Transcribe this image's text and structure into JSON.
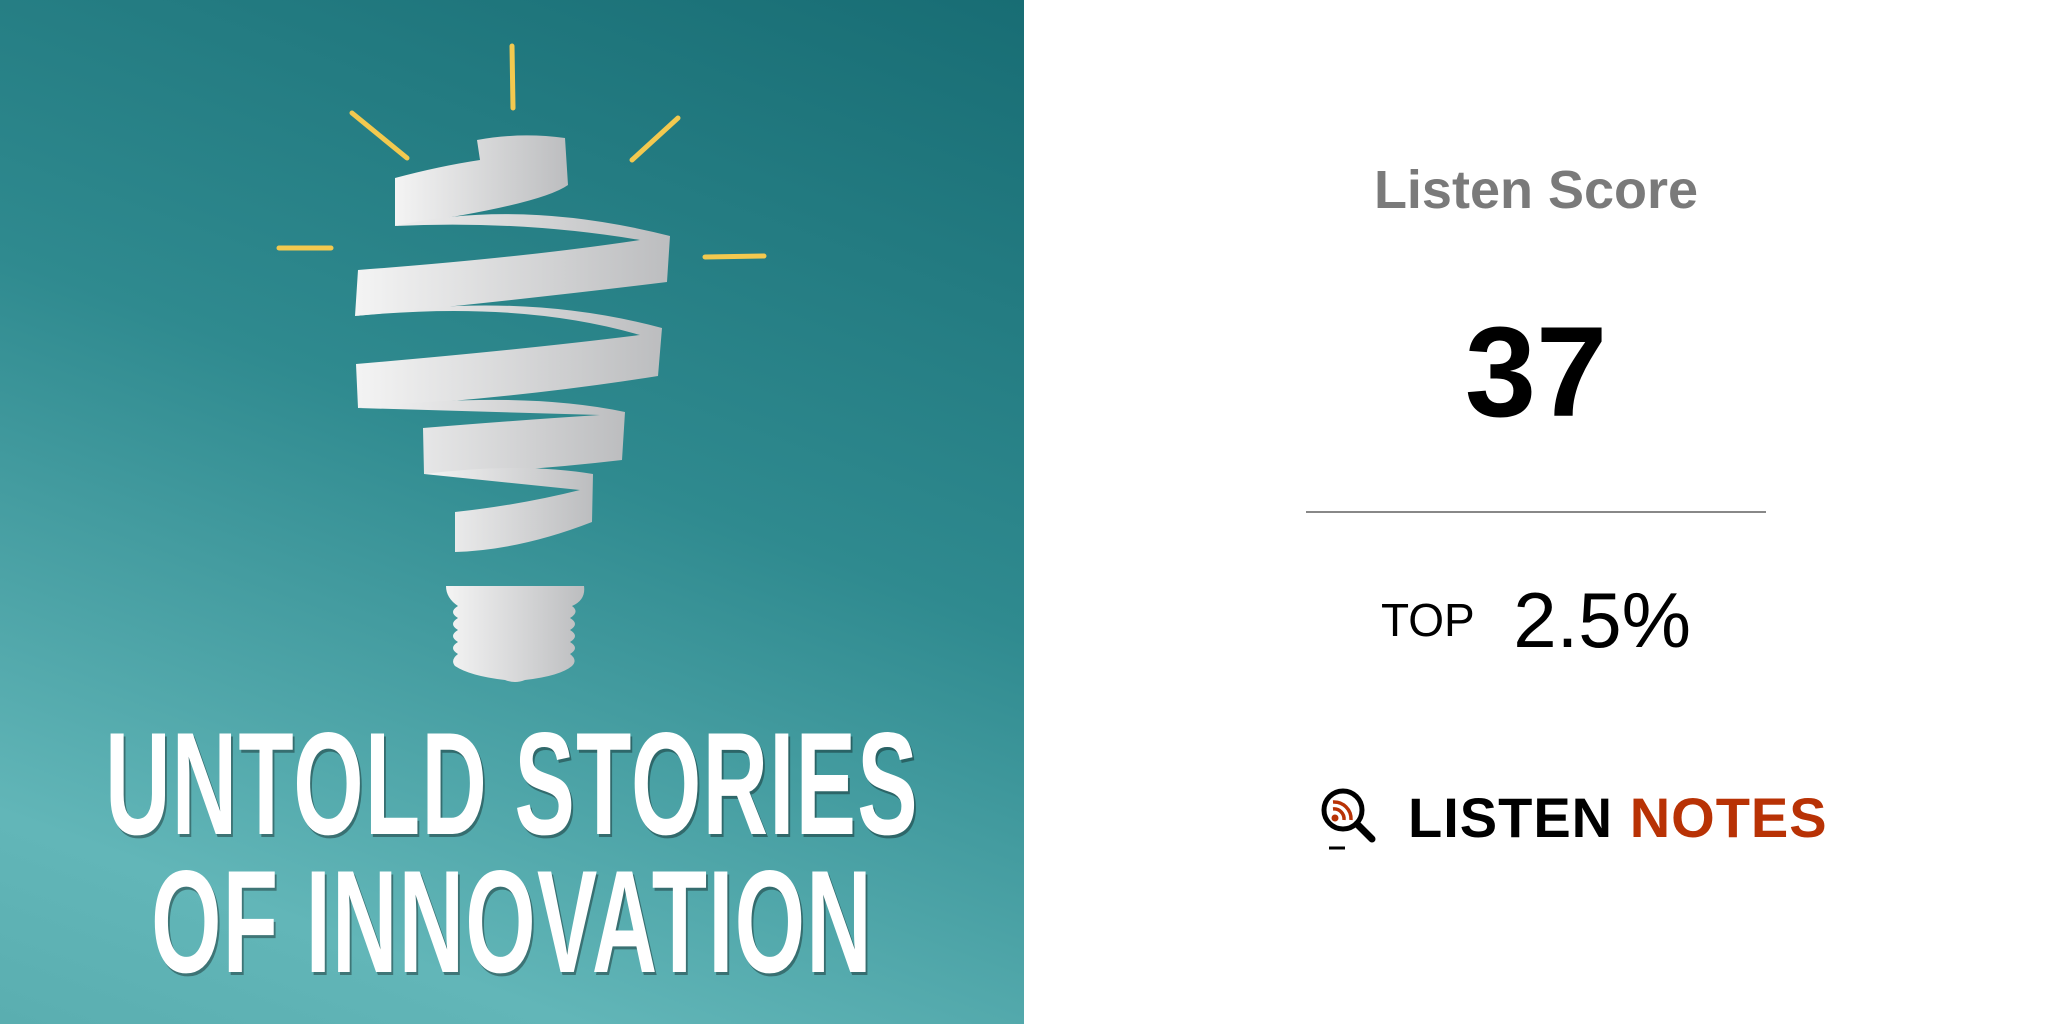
{
  "cover": {
    "title_line1": "UNTOLD STORIES",
    "title_line2": "OF INNOVATION",
    "illustration": "ribbon-lightbulb",
    "colors": {
      "background_dark": "#186d74",
      "background_light": "#62b6b8",
      "rays": "#f3c94f"
    }
  },
  "score_panel": {
    "label": "Listen Score",
    "value": "37",
    "rank_label": "TOP",
    "rank_value": "2.5%"
  },
  "brand": {
    "word1": "LISTEN",
    "word2": "NOTES",
    "icon": "magnifier-rss-icon",
    "colors": {
      "primary": "#000000",
      "accent": "#b83205"
    }
  }
}
